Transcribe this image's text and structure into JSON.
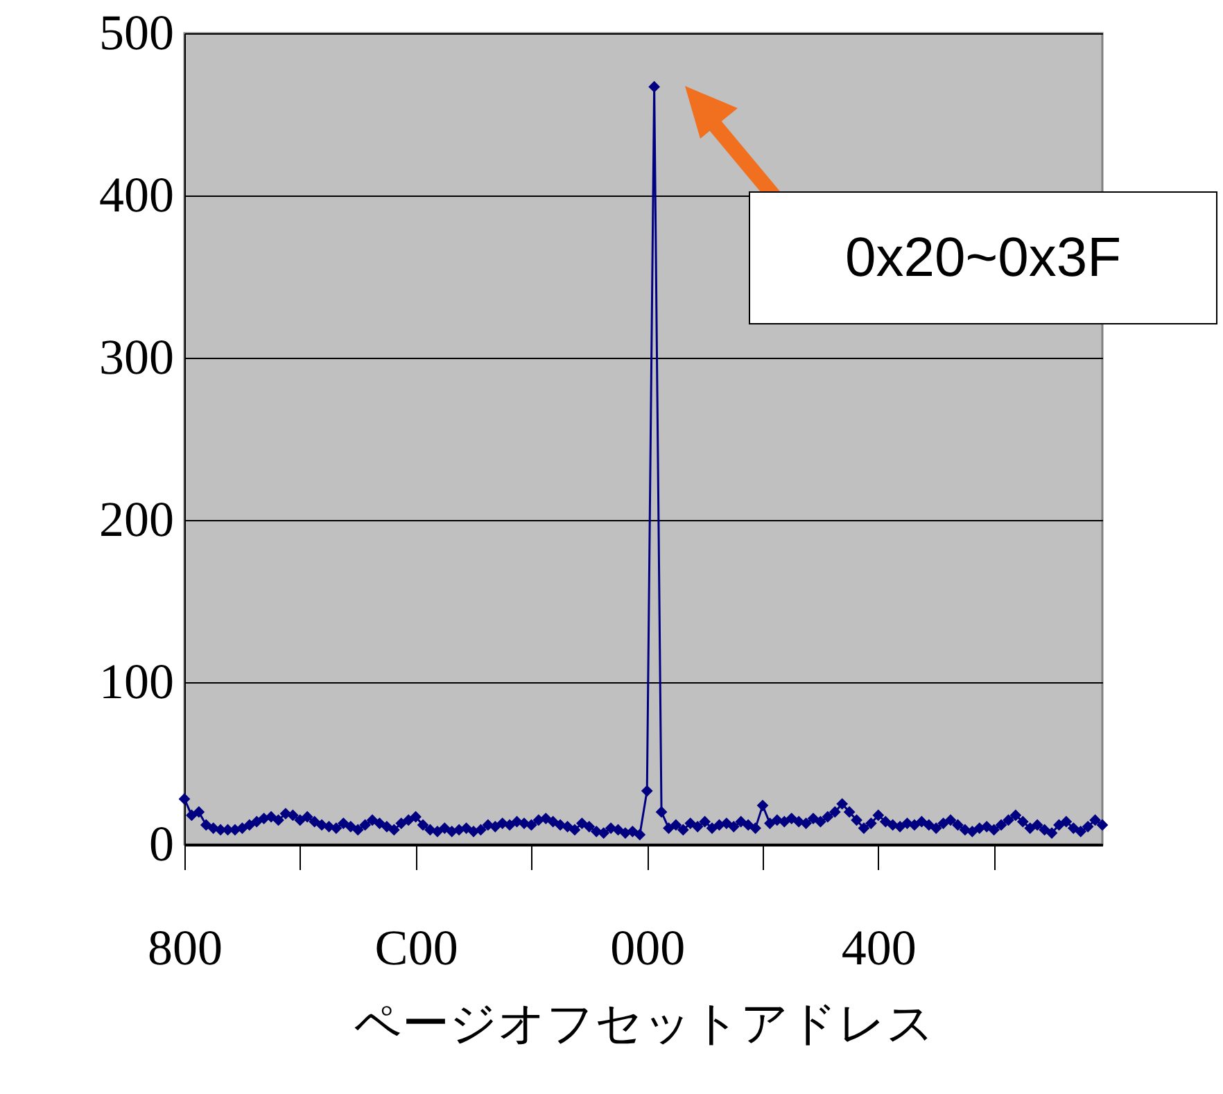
{
  "chart_data": {
    "type": "line",
    "xlabel": "ページオフセットアドレス",
    "categories": [
      "800",
      null,
      null,
      null,
      null,
      null,
      null,
      null,
      null,
      null,
      null,
      null,
      null,
      null,
      null,
      null,
      null,
      null,
      null,
      null,
      null,
      null,
      null,
      null,
      null,
      null,
      null,
      null,
      null,
      null,
      null,
      null,
      "C00",
      null,
      null,
      null,
      null,
      null,
      null,
      null,
      null,
      null,
      null,
      null,
      null,
      null,
      null,
      null,
      null,
      null,
      null,
      null,
      null,
      null,
      null,
      null,
      null,
      null,
      null,
      null,
      null,
      null,
      null,
      null,
      "000",
      null,
      null,
      null,
      null,
      null,
      null,
      null,
      null,
      null,
      null,
      null,
      null,
      null,
      null,
      null,
      null,
      null,
      null,
      null,
      null,
      null,
      null,
      null,
      null,
      null,
      null,
      null,
      null,
      null,
      null,
      null,
      "400",
      null,
      null,
      null,
      null,
      null,
      null,
      null,
      null,
      null,
      null,
      null,
      null,
      null,
      null,
      null,
      null,
      null,
      null,
      null,
      null,
      null,
      null,
      null,
      null,
      null,
      null,
      null,
      null,
      null,
      null,
      null
    ],
    "series": [
      {
        "color": "#000080",
        "values": [
          28,
          18,
          20,
          12,
          10,
          9,
          9,
          9,
          10,
          12,
          14,
          16,
          17,
          15,
          19,
          18,
          15,
          17,
          14,
          12,
          11,
          10,
          13,
          11,
          9,
          12,
          15,
          13,
          11,
          9,
          13,
          15,
          17,
          12,
          9,
          8,
          10,
          8,
          9,
          10,
          8,
          9,
          12,
          11,
          13,
          12,
          14,
          13,
          12,
          15,
          16,
          14,
          12,
          11,
          9,
          13,
          11,
          8,
          7,
          10,
          9,
          7,
          8,
          6,
          33,
          467,
          20,
          10,
          12,
          9,
          13,
          11,
          14,
          10,
          12,
          13,
          11,
          14,
          12,
          10,
          24,
          13,
          15,
          14,
          16,
          14,
          13,
          16,
          14,
          17,
          20,
          25,
          20,
          15,
          10,
          13,
          18,
          14,
          12,
          11,
          13,
          12,
          14,
          12,
          10,
          13,
          15,
          12,
          9,
          8,
          10,
          11,
          9,
          12,
          15,
          18,
          14,
          10,
          12,
          9,
          7,
          12,
          14,
          10,
          8,
          11,
          15,
          12
        ]
      }
    ],
    "ylim": [
      0,
      500
    ],
    "yticks": [
      0,
      100,
      200,
      300,
      400,
      500
    ],
    "grid": "y",
    "marker": "diamond",
    "annotations": [
      "0x20~0x3F"
    ]
  }
}
